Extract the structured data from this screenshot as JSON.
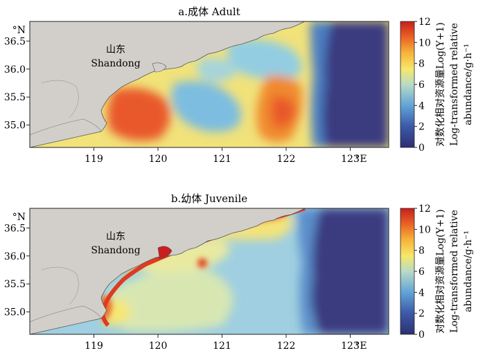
{
  "chart_data": [
    {
      "type": "heatmap",
      "title": "a.成体 Adult",
      "region_label": [
        "山东",
        "Shandong"
      ],
      "x_ticks": [
        "119",
        "120",
        "121",
        "122",
        "123"
      ],
      "x_unit": "°E",
      "y_ticks": [
        "35.0",
        "35.5",
        "36.0",
        "36.5"
      ],
      "y_unit": "°N",
      "xlim": [
        118.0,
        123.6
      ],
      "ylim": [
        34.6,
        36.85
      ],
      "colorbar": {
        "ticks": [
          "0",
          "2",
          "4",
          "6",
          "8",
          "10",
          "12"
        ],
        "range": [
          0,
          12
        ],
        "label_cn": "对数化相对资源量Log(Y+1)",
        "label_en": "Log-transformed relative",
        "label_unit": "abundance/g·h⁻¹"
      },
      "hotspots": [
        {
          "lon": 120.15,
          "lat": 35.2,
          "value": 10.5
        },
        {
          "lon": 122.1,
          "lat": 35.35,
          "value": 9.5
        },
        {
          "lon": 121.2,
          "lat": 36.3,
          "value": 8.0
        },
        {
          "lon": 121.0,
          "lat": 35.5,
          "value": 4.0
        },
        {
          "lon": 123.4,
          "lat": 35.6,
          "value": 0.5
        }
      ]
    },
    {
      "type": "heatmap",
      "title": "b.幼体 Juvenile",
      "region_label": [
        "山东",
        "Shandong"
      ],
      "x_ticks": [
        "119",
        "120",
        "121",
        "122",
        "123"
      ],
      "x_unit": "°E",
      "y_ticks": [
        "35.0",
        "35.5",
        "36.0",
        "36.5"
      ],
      "y_unit": "°N",
      "xlim": [
        118.0,
        123.6
      ],
      "ylim": [
        34.6,
        36.85
      ],
      "colorbar": {
        "ticks": [
          "0",
          "2",
          "4",
          "6",
          "8",
          "10",
          "12"
        ],
        "range": [
          0,
          12
        ],
        "label_cn": "对数化相对资源量Log(Y+1)",
        "label_en": "Log-transformed relative",
        "label_unit": "abundance/g·h⁻¹"
      },
      "hotspots": [
        {
          "lon": 121.9,
          "lat": 36.7,
          "value": 11.0
        },
        {
          "lon": 120.3,
          "lat": 36.05,
          "value": 11.0
        },
        {
          "lon": 119.4,
          "lat": 35.0,
          "value": 9.5
        },
        {
          "lon": 121.5,
          "lat": 35.5,
          "value": 5.0
        },
        {
          "lon": 123.3,
          "lat": 35.6,
          "value": 0.5
        }
      ]
    }
  ]
}
